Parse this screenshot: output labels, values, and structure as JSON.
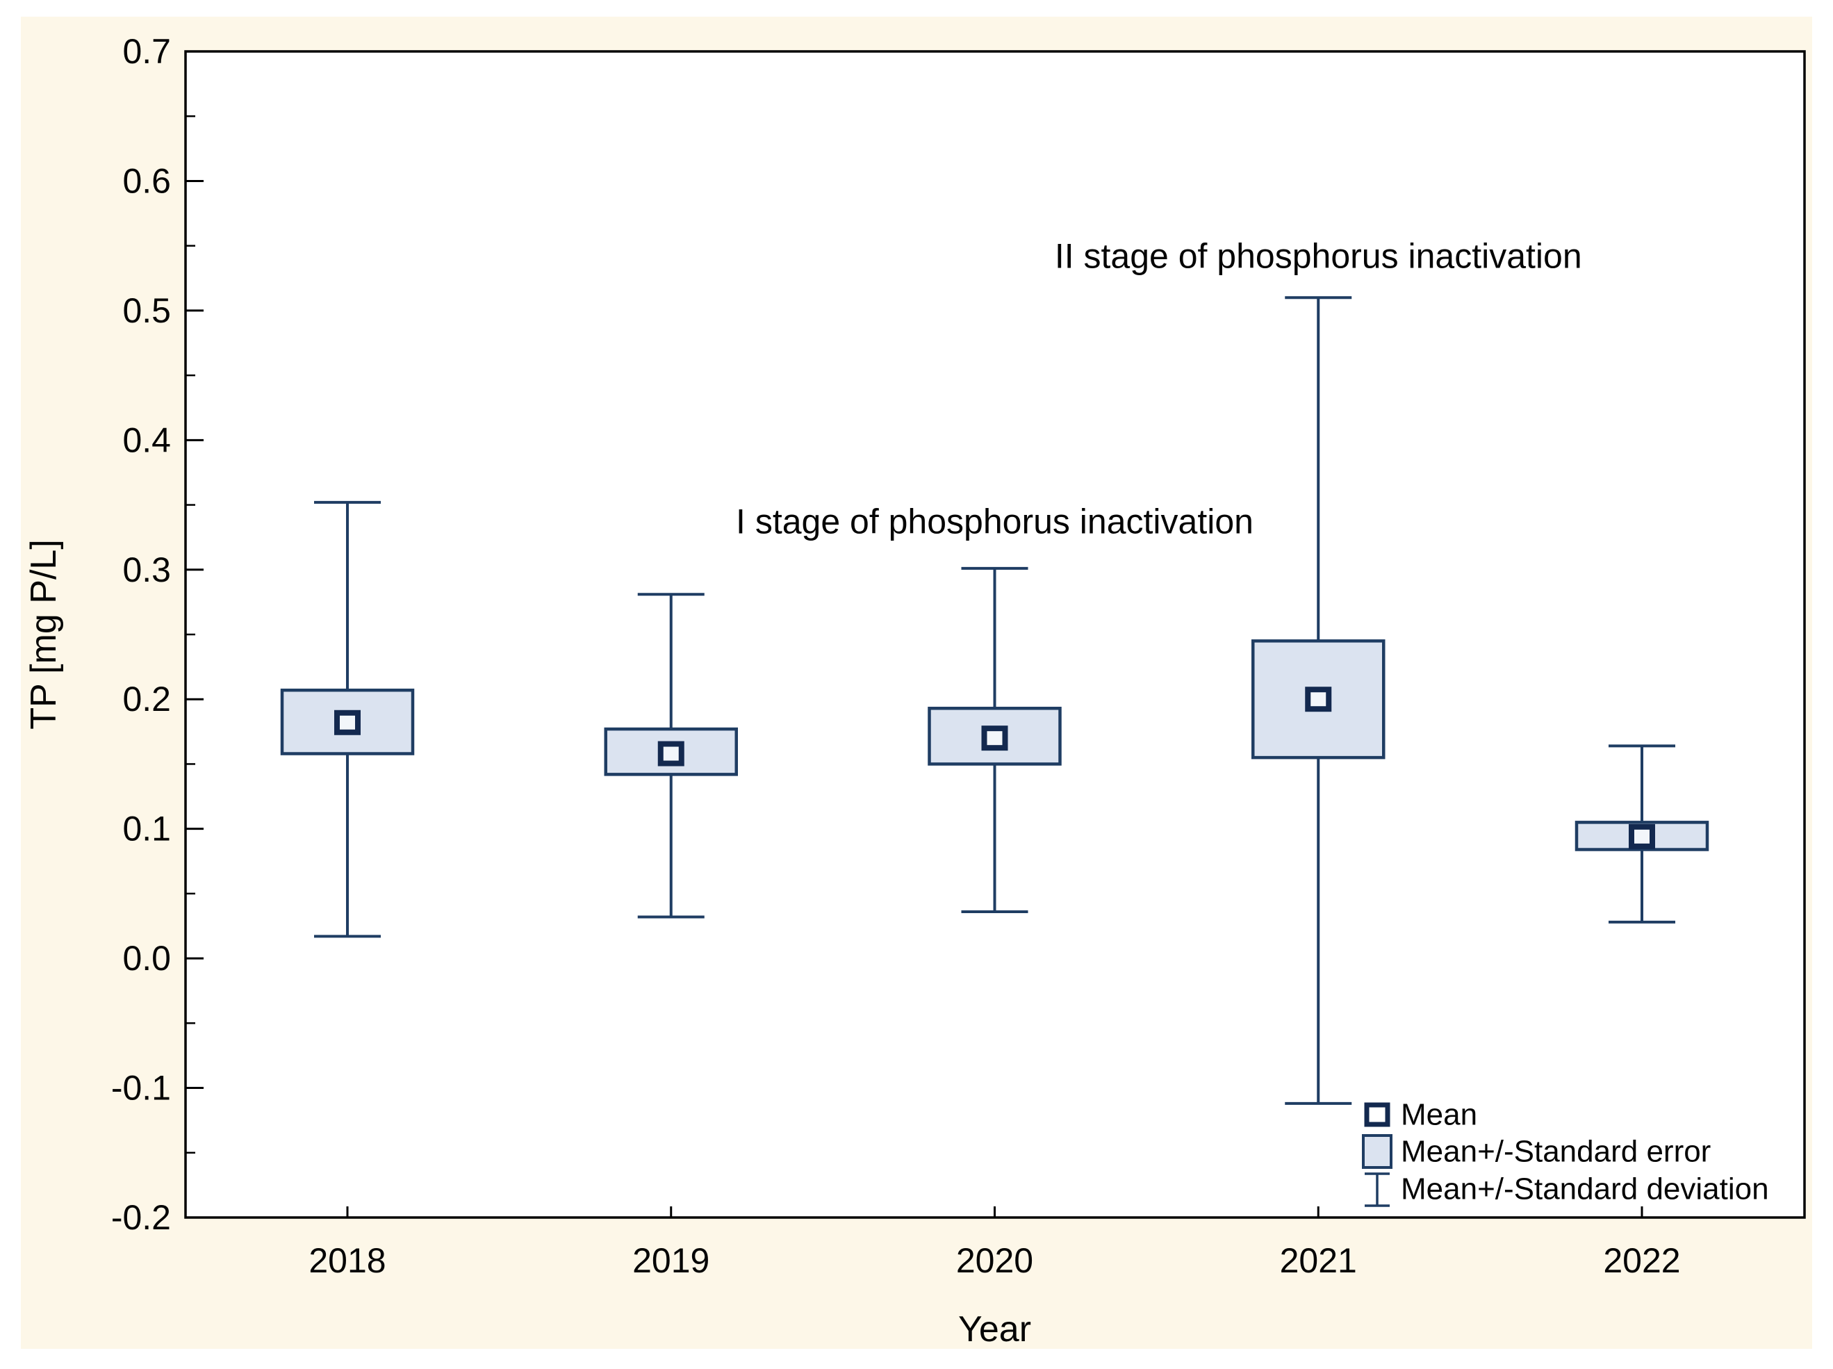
{
  "chart_data": {
    "type": "box-whisker-mean",
    "title": "",
    "xlabel": "Year",
    "ylabel": "TP [mg P/L]",
    "categories": [
      "2018",
      "2019",
      "2020",
      "2021",
      "2022"
    ],
    "series": {
      "mean": {
        "label": "Mean",
        "values": [
          0.182,
          0.158,
          0.17,
          0.2,
          0.094
        ]
      },
      "standard_error": {
        "label": "Mean+/-Standard error",
        "low": [
          0.158,
          0.142,
          0.15,
          0.155,
          0.084
        ],
        "high": [
          0.207,
          0.177,
          0.193,
          0.245,
          0.105
        ]
      },
      "standard_deviation": {
        "label": "Mean+/-Standard deviation",
        "low": [
          0.017,
          0.032,
          0.036,
          -0.112,
          0.028
        ],
        "high": [
          0.352,
          0.281,
          0.301,
          0.51,
          0.164
        ]
      }
    },
    "ylim": [
      -0.2,
      0.7
    ],
    "ytick_step": 0.1,
    "yminor_step": 0.05,
    "ytick_labels": [
      "0.7",
      "0.6",
      "0.5",
      "0.4",
      "0.3",
      "0.2",
      "0.1",
      "0.0",
      "-0.1",
      "-0.2"
    ],
    "ytick_values": [
      0.7,
      0.6,
      0.5,
      0.4,
      0.3,
      0.2,
      0.1,
      0.0,
      -0.1,
      -0.2
    ],
    "grid": false,
    "annotations": [
      {
        "text": "II stage of phosphorus inactivation",
        "category": "2021",
        "value": 0.533
      },
      {
        "text": "I stage of phosphorus inactivation",
        "category": "2020",
        "value": 0.328
      }
    ],
    "legend": {
      "position": "bottom-right-inside",
      "entries": [
        "Mean",
        "Mean+/-Standard error",
        "Mean+/-Standard deviation"
      ]
    },
    "colors": {
      "canvas_background": "#ffffff",
      "panel_background": "#fdf7e8",
      "plot_background": "#ffffff",
      "frame": "#000000",
      "line": "#1f3d63",
      "mean_marker": "#13294f",
      "mean_marker_fill": "#f2f6fa",
      "box_fill": "#dbe3f0",
      "text": "#050505"
    }
  }
}
